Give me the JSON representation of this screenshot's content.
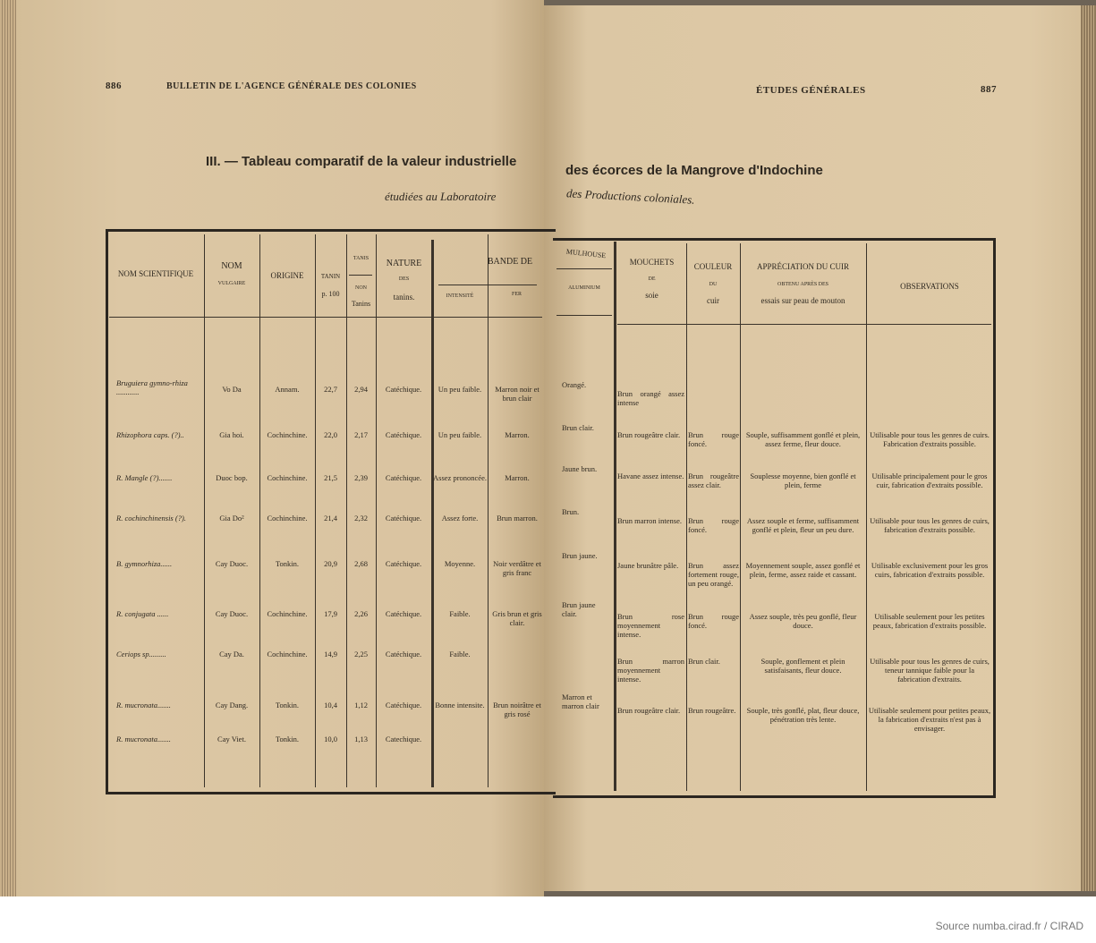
{
  "left_page": {
    "page_number": "886",
    "running_head": "BULLETIN DE L'AGENCE GÉNÉRALE DES COLONIES",
    "title": "III. — Tableau comparatif de la valeur industrielle",
    "subtitle": "étudiées au Laboratoire",
    "headers": {
      "nom_scientifique": "NOM SCIENTIFIQUE",
      "nom": "NOM",
      "vulgaire": "VULGAIRE",
      "origine": "ORIGINE",
      "tanin": "TANIN",
      "p100": "p. 100",
      "tanis": "TANIS",
      "non": "NON",
      "tanins_non": "Tanins",
      "nature": "NATURE",
      "des": "DES",
      "tanins": "tanins.",
      "bande_de": "BANDE DE",
      "intensite": "INTENSITÉ",
      "teinte": "FER"
    },
    "rows": [
      {
        "sci": "Bruguiera gymno-rhiza ............",
        "vulg": "Vo Da",
        "orig": "Annam.",
        "tanin": "22,7",
        "non": "2,94",
        "nat": "Catéchique.",
        "int": "Un peu faible.",
        "fer": "Marron noir et brun clair"
      },
      {
        "sci": "Rhizophora caps. (?)..",
        "vulg": "Gia hoi.",
        "orig": "Cochinchine.",
        "tanin": "22,0",
        "non": "2,17",
        "nat": "Catéchique.",
        "int": "Un peu faible.",
        "fer": "Marron."
      },
      {
        "sci": "R. Mangle (?).......",
        "vulg": "Duoc bop.",
        "orig": "Cochinchine.",
        "tanin": "21,5",
        "non": "2,39",
        "nat": "Catéchique.",
        "int": "Assez prononcée.",
        "fer": "Marron."
      },
      {
        "sci": "R. cochinchinensis (?).",
        "vulg": "Gia Do²",
        "orig": "Cochinchine.",
        "tanin": "21,4",
        "non": "2,32",
        "nat": "Catéchique.",
        "int": "Assez forte.",
        "fer": "Brun marron."
      },
      {
        "sci": "B. gymnorhiza......",
        "vulg": "Cay Duoc.",
        "orig": "Tonkin.",
        "tanin": "20,9",
        "non": "2,68",
        "nat": "Catéchique.",
        "int": "Moyenne.",
        "fer": "Noir verdâtre et gris franc"
      },
      {
        "sci": "R. conjugata ......",
        "vulg": "Cay Duoc.",
        "orig": "Cochinchine.",
        "tanin": "17,9",
        "non": "2,26",
        "nat": "Catéchique.",
        "int": "Faible.",
        "fer": "Gris brun et gris clair."
      },
      {
        "sci": "Ceriops sp.........",
        "vulg": "Cay Da.",
        "orig": "Cochinchine.",
        "tanin": "14,9",
        "non": "2,25",
        "nat": "Catéchique.",
        "int": "Faible.",
        "fer": ""
      },
      {
        "sci": "R. mucronata.......",
        "vulg": "Cay Dang.",
        "orig": "Tonkin.",
        "tanin": "10,4",
        "non": "1,12",
        "nat": "Catéchique.",
        "int": "Bonne intensite.",
        "fer": "Brun noirâtre et gris rosé"
      },
      {
        "sci": "R. mucronata.......",
        "vulg": "Cay Viet.",
        "orig": "Tonkin.",
        "tanin": "10,0",
        "non": "1,13",
        "nat": "Catechique.",
        "int": "",
        "fer": ""
      }
    ]
  },
  "right_page": {
    "page_number": "887",
    "running_head": "ÉTUDES GÉNÉRALES",
    "title": "des écorces de la Mangrove d'Indochine",
    "subtitle": "des Productions coloniales.",
    "headers": {
      "mulhouse": "MULHOUSE",
      "aluminium": "ALUMINIUM",
      "mouchets": "MOUCHETS",
      "de": "DE",
      "soie": "soie",
      "couleur": "COULEUR",
      "du": "DU",
      "cuir": "cuir",
      "appreciation": "APPRÉCIATION DU CUIR",
      "obtenu": "OBTENU APRÈS DES",
      "essais": "essais sur peau de mouton",
      "observations": "OBSERVATIONS"
    },
    "mulhouse": [
      "Orangé.",
      "Brun clair.",
      "Jaune brun.",
      "Brun.",
      "Brun jaune.",
      "Brun jaune clair.",
      "Marron et marron clair"
    ],
    "rows": [
      {
        "soie": "Brun orangé assez intense",
        "cuir": "",
        "appr": "",
        "obs": ""
      },
      {
        "soie": "Brun rougeâtre clair.",
        "cuir": "Brun rouge foncé.",
        "appr": "Souple, suffisamment gonflé et plein, assez ferme, fleur douce.",
        "obs": "Utilisable pour tous les genres de cuirs. Fabrication d'extraits possible."
      },
      {
        "soie": "Havane assez intense.",
        "cuir": "Brun rougeâtre assez clair.",
        "appr": "Souplesse moyenne, bien gonflé et plein, ferme",
        "obs": "Utilisable principalement pour le gros cuir, fabrication d'extraits possible."
      },
      {
        "soie": "Brun marron intense.",
        "cuir": "Brun rouge foncé.",
        "appr": "Assez souple et ferme, suffisamment gonflé et plein, fleur un peu dure.",
        "obs": "Utilisable pour tous les genres de cuirs, fabrication d'extraits possible."
      },
      {
        "soie": "Jaune brunâtre pâle.",
        "cuir": "Brun assez fortement rouge, un peu orangé.",
        "appr": "Moyennement souple, assez gonflé et plein, ferme, assez raide et cassant.",
        "obs": "Utilisable exclusivement pour les gros cuirs, fabrication d'extraits possible."
      },
      {
        "soie": "Brun rose moyennement intense.",
        "cuir": "Brun rouge foncé.",
        "appr": "Assez souple, très peu gonflé, fleur douce.",
        "obs": "Utilisable seulement pour les petites peaux, fabrication d'extraits possible."
      },
      {
        "soie": "Brun marron moyennement intense.",
        "cuir": "Brun clair.",
        "appr": "Souple, gonflement et plein satisfaisants, fleur douce.",
        "obs": "Utilisable pour tous les genres de cuirs, teneur tannique faible pour la fabrication d'extraits."
      },
      {
        "soie": "Brun rougeâtre clair.",
        "cuir": "Brun rougeâtre.",
        "appr": "Souple, très gonflé, plat, fleur douce, pénétration très lente.",
        "obs": "Utilisable seulement pour petites peaux, la fabrication d'extraits n'est pas à envisager."
      }
    ]
  },
  "footer": {
    "source": "Source numba.cirad.fr / CIRAD"
  }
}
